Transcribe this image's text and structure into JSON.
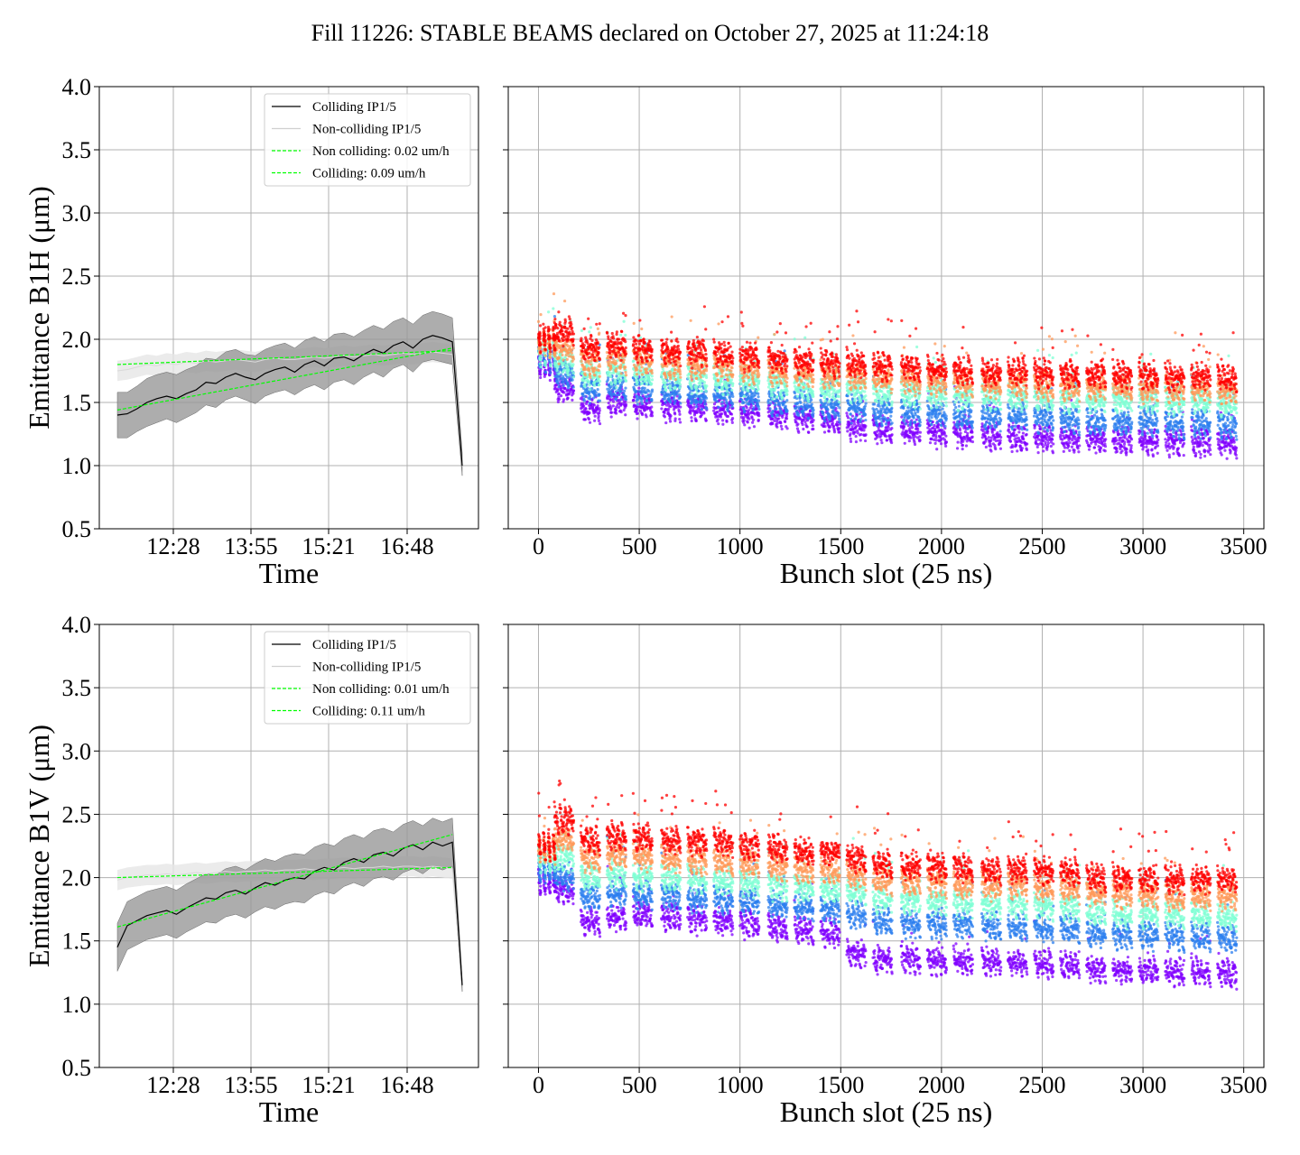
{
  "title": "Fill 11226: STABLE BEAMS declared on October 27, 2025 at 11:24:18",
  "chart_data": [
    {
      "type": "line",
      "panel": "top-left",
      "ylabel": "Emittance B1H (μm)",
      "xlabel": "Time",
      "ylim": [
        0.5,
        4.0
      ],
      "yticks": [
        "0.5",
        "1.0",
        "1.5",
        "2.0",
        "2.5",
        "3.0",
        "3.5",
        "4.0"
      ],
      "xticks": [
        "12:28",
        "13:55",
        "15:21",
        "16:48"
      ],
      "grid": true,
      "legend_position": "top-right",
      "legend": [
        "Colliding IP1/5",
        "Non-colliding IP1/5",
        "Non colliding: 0.02 um/h",
        "Colliding: 0.09 um/h"
      ],
      "colliding_mean": [
        1.4,
        1.41,
        1.45,
        1.5,
        1.53,
        1.55,
        1.53,
        1.57,
        1.6,
        1.66,
        1.65,
        1.7,
        1.73,
        1.7,
        1.68,
        1.73,
        1.76,
        1.78,
        1.74,
        1.8,
        1.83,
        1.79,
        1.85,
        1.86,
        1.83,
        1.88,
        1.92,
        1.89,
        1.95,
        1.98,
        1.93,
        2.0,
        2.03,
        2.01,
        1.98,
        1.0
      ],
      "colliding_band_low": [
        1.22,
        1.22,
        1.27,
        1.31,
        1.34,
        1.37,
        1.34,
        1.38,
        1.42,
        1.48,
        1.46,
        1.52,
        1.55,
        1.52,
        1.49,
        1.55,
        1.58,
        1.6,
        1.56,
        1.61,
        1.64,
        1.6,
        1.66,
        1.68,
        1.64,
        1.7,
        1.74,
        1.7,
        1.77,
        1.8,
        1.74,
        1.82,
        1.84,
        1.82,
        1.8,
        0.92
      ],
      "colliding_band_high": [
        1.58,
        1.58,
        1.63,
        1.69,
        1.72,
        1.74,
        1.72,
        1.76,
        1.79,
        1.85,
        1.84,
        1.9,
        1.92,
        1.88,
        1.87,
        1.92,
        1.95,
        1.97,
        1.93,
        1.99,
        2.02,
        1.98,
        2.04,
        2.05,
        2.02,
        2.07,
        2.11,
        2.08,
        2.14,
        2.17,
        2.12,
        2.19,
        2.22,
        2.2,
        2.17,
        1.1
      ],
      "noncolliding_mean": [
        1.75,
        1.76,
        1.78,
        1.8,
        1.79,
        1.81,
        1.8,
        1.82,
        1.81,
        1.83,
        1.82,
        1.83,
        1.84,
        1.83,
        1.82,
        1.84,
        1.85,
        1.84,
        1.84,
        1.85,
        1.86,
        1.85,
        1.86,
        1.87,
        1.86,
        1.87,
        1.88,
        1.87,
        1.88,
        1.89,
        1.88,
        1.89,
        1.9,
        1.89,
        1.88,
        1.0
      ],
      "fit_noncolliding": {
        "start": 1.8,
        "end": 1.91
      },
      "fit_colliding": {
        "start": 1.44,
        "end": 1.93
      },
      "colors": {
        "colliding": "#000000",
        "noncolliding": "#d9d9d9",
        "band": "#999999",
        "fit": "#00ff00"
      }
    },
    {
      "type": "scatter",
      "panel": "top-right",
      "xlabel": "Bunch slot (25 ns)",
      "xlim": [
        -150,
        3600
      ],
      "ylim": [
        0.5,
        4.0
      ],
      "xticks": [
        "0",
        "500",
        "1000",
        "1500",
        "2000",
        "2500",
        "3000",
        "3500"
      ],
      "grid": true,
      "trains_start": [
        0,
        80,
        210,
        340,
        470,
        610,
        740,
        870,
        1000,
        1140,
        1270,
        1400,
        1530,
        1660,
        1800,
        1930,
        2060,
        2200,
        2330,
        2460,
        2590,
        2720,
        2850,
        2980,
        3110,
        3240,
        3370
      ],
      "layers": [
        {
          "color": "#8000ff",
          "start": [
            1.78,
            1.6,
            1.45,
            1.5,
            1.48,
            1.46,
            1.45,
            1.44,
            1.42,
            1.4,
            1.38,
            1.36,
            1.3,
            1.28,
            1.27,
            1.25,
            1.24,
            1.23,
            1.22,
            1.21,
            1.2,
            1.2,
            1.19,
            1.19,
            1.18,
            1.18,
            1.17
          ]
        },
        {
          "color": "#2c7fef",
          "start": [
            1.85,
            1.72,
            1.6,
            1.62,
            1.6,
            1.58,
            1.56,
            1.55,
            1.53,
            1.5,
            1.48,
            1.46,
            1.45,
            1.42,
            1.42,
            1.4,
            1.39,
            1.38,
            1.38,
            1.37,
            1.36,
            1.35,
            1.34,
            1.34,
            1.33,
            1.33,
            1.32
          ]
        },
        {
          "color": "#7fffd4",
          "start": [
            1.9,
            1.82,
            1.72,
            1.74,
            1.72,
            1.7,
            1.69,
            1.68,
            1.66,
            1.64,
            1.62,
            1.61,
            1.6,
            1.58,
            1.57,
            1.56,
            1.55,
            1.54,
            1.54,
            1.53,
            1.52,
            1.52,
            1.51,
            1.51,
            1.5,
            1.5,
            1.49
          ]
        },
        {
          "color": "#ff9a5a",
          "start": [
            1.95,
            1.92,
            1.82,
            1.84,
            1.82,
            1.8,
            1.79,
            1.78,
            1.76,
            1.74,
            1.72,
            1.71,
            1.7,
            1.68,
            1.67,
            1.66,
            1.65,
            1.64,
            1.64,
            1.63,
            1.62,
            1.62,
            1.61,
            1.61,
            1.6,
            1.6,
            1.59
          ]
        },
        {
          "color": "#ff0000",
          "start": [
            2.0,
            2.05,
            1.92,
            1.95,
            1.93,
            1.9,
            1.89,
            1.88,
            1.86,
            1.84,
            1.82,
            1.81,
            1.8,
            1.78,
            1.77,
            1.76,
            1.75,
            1.74,
            1.74,
            1.73,
            1.72,
            1.72,
            1.71,
            1.71,
            1.7,
            1.7,
            1.69
          ]
        }
      ]
    },
    {
      "type": "line",
      "panel": "bottom-left",
      "ylabel": "Emittance B1V (μm)",
      "xlabel": "Time",
      "ylim": [
        0.5,
        4.0
      ],
      "yticks": [
        "0.5",
        "1.0",
        "1.5",
        "2.0",
        "2.5",
        "3.0",
        "3.5",
        "4.0"
      ],
      "xticks": [
        "12:28",
        "13:55",
        "15:21",
        "16:48"
      ],
      "grid": true,
      "legend_position": "top-right",
      "legend": [
        "Colliding IP1/5",
        "Non-colliding IP1/5",
        "Non colliding: 0.01 um/h",
        "Colliding: 0.11 um/h"
      ],
      "colliding_mean": [
        1.45,
        1.62,
        1.66,
        1.7,
        1.72,
        1.74,
        1.71,
        1.76,
        1.8,
        1.84,
        1.83,
        1.88,
        1.9,
        1.87,
        1.92,
        1.96,
        1.94,
        1.98,
        2.0,
        1.99,
        2.05,
        2.08,
        2.06,
        2.12,
        2.15,
        2.12,
        2.18,
        2.2,
        2.17,
        2.23,
        2.26,
        2.22,
        2.28,
        2.25,
        2.28,
        1.15
      ],
      "colliding_band_low": [
        1.26,
        1.43,
        1.47,
        1.51,
        1.53,
        1.55,
        1.52,
        1.57,
        1.61,
        1.65,
        1.64,
        1.69,
        1.71,
        1.68,
        1.73,
        1.77,
        1.75,
        1.79,
        1.81,
        1.8,
        1.86,
        1.89,
        1.87,
        1.93,
        1.96,
        1.93,
        1.99,
        2.01,
        1.98,
        2.04,
        2.07,
        2.03,
        2.09,
        2.06,
        2.09,
        1.1
      ],
      "colliding_band_high": [
        1.64,
        1.81,
        1.85,
        1.89,
        1.91,
        1.93,
        1.9,
        1.95,
        1.99,
        2.03,
        2.02,
        2.07,
        2.09,
        2.06,
        2.11,
        2.15,
        2.13,
        2.17,
        2.19,
        2.18,
        2.24,
        2.27,
        2.25,
        2.31,
        2.34,
        2.31,
        2.37,
        2.39,
        2.36,
        2.42,
        2.45,
        2.41,
        2.47,
        2.44,
        2.47,
        1.2
      ],
      "noncolliding_mean": [
        1.98,
        2.0,
        2.01,
        2.02,
        2.02,
        2.03,
        2.02,
        2.03,
        2.04,
        2.03,
        2.04,
        2.05,
        2.04,
        2.05,
        2.05,
        2.06,
        2.05,
        2.06,
        2.06,
        2.07,
        2.06,
        2.07,
        2.07,
        2.08,
        2.07,
        2.08,
        2.08,
        2.09,
        2.08,
        2.09,
        2.09,
        2.08,
        2.09,
        2.08,
        2.07,
        1.15
      ],
      "fit_noncolliding": {
        "start": 2.0,
        "end": 2.08
      },
      "fit_colliding": {
        "start": 1.61,
        "end": 2.34
      },
      "colors": {
        "colliding": "#000000",
        "noncolliding": "#d9d9d9",
        "band": "#999999",
        "fit": "#00ff00"
      }
    },
    {
      "type": "scatter",
      "panel": "bottom-right",
      "xlabel": "Bunch slot (25 ns)",
      "xlim": [
        -150,
        3600
      ],
      "ylim": [
        0.5,
        4.0
      ],
      "xticks": [
        "0",
        "500",
        "1000",
        "1500",
        "2000",
        "2500",
        "3000",
        "3500"
      ],
      "grid": true,
      "trains_start": [
        0,
        80,
        210,
        340,
        470,
        610,
        740,
        870,
        1000,
        1140,
        1270,
        1400,
        1530,
        1660,
        1800,
        1930,
        2060,
        2200,
        2330,
        2460,
        2590,
        2720,
        2850,
        2980,
        3110,
        3240,
        3370
      ],
      "layers": [
        {
          "color": "#8000ff",
          "start": [
            1.95,
            1.9,
            1.65,
            1.68,
            1.7,
            1.68,
            1.66,
            1.65,
            1.63,
            1.6,
            1.58,
            1.56,
            1.4,
            1.35,
            1.35,
            1.34,
            1.34,
            1.33,
            1.33,
            1.32,
            1.3,
            1.27,
            1.26,
            1.26,
            1.25,
            1.25,
            1.24
          ]
        },
        {
          "color": "#2c7fef",
          "start": [
            2.05,
            2.0,
            1.85,
            1.87,
            1.86,
            1.84,
            1.83,
            1.82,
            1.8,
            1.78,
            1.76,
            1.74,
            1.7,
            1.65,
            1.64,
            1.63,
            1.62,
            1.61,
            1.6,
            1.6,
            1.59,
            1.55,
            1.54,
            1.54,
            1.53,
            1.53,
            1.52
          ]
        },
        {
          "color": "#7fffd4",
          "start": [
            2.15,
            2.15,
            2.0,
            2.02,
            2.01,
            1.99,
            1.98,
            1.97,
            1.95,
            1.93,
            1.91,
            1.9,
            1.88,
            1.82,
            1.81,
            1.8,
            1.79,
            1.78,
            1.78,
            1.77,
            1.76,
            1.72,
            1.71,
            1.71,
            1.7,
            1.7,
            1.69
          ]
        },
        {
          "color": "#ff9a5a",
          "start": [
            2.2,
            2.3,
            2.15,
            2.17,
            2.16,
            2.14,
            2.13,
            2.12,
            2.1,
            2.08,
            2.06,
            2.05,
            2.02,
            1.97,
            1.96,
            1.95,
            1.94,
            1.93,
            1.93,
            1.92,
            1.91,
            1.87,
            1.86,
            1.86,
            1.85,
            1.85,
            1.84
          ]
        },
        {
          "color": "#ff0000",
          "start": [
            2.25,
            2.45,
            2.3,
            2.32,
            2.31,
            2.29,
            2.28,
            2.27,
            2.25,
            2.23,
            2.21,
            2.2,
            2.15,
            2.1,
            2.09,
            2.08,
            2.07,
            2.06,
            2.06,
            2.05,
            2.04,
            2.0,
            1.99,
            1.99,
            1.98,
            1.98,
            1.97
          ]
        }
      ]
    }
  ]
}
